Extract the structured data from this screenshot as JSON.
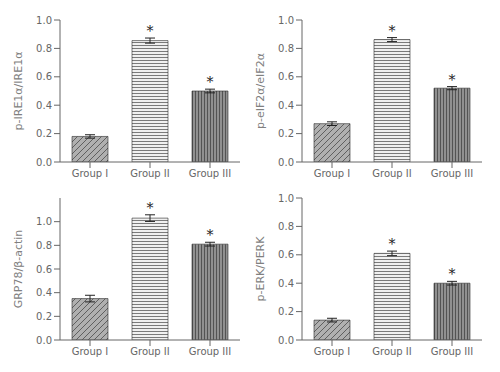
{
  "chart_data": [
    {
      "type": "bar",
      "ylabel": "p-IRE1α/IRE1α",
      "categories": [
        "Group I",
        "Group II",
        "Group III"
      ],
      "values": [
        0.18,
        0.855,
        0.5
      ],
      "errors": [
        0.012,
        0.018,
        0.013
      ],
      "colors": [
        "#b0b0b0",
        "#f0f0f0",
        "#909090"
      ],
      "ylim": [
        0.0,
        1.0
      ],
      "yticks": [
        {
          "value": 0,
          "label": "0.0"
        },
        0.2,
        0.4,
        0.6,
        0.8,
        {
          "value": 1,
          "label": "1.0"
        }
      ],
      "grid": false,
      "annotations": [
        {
          "category": "Group II",
          "text": "*"
        },
        {
          "category": "Group III",
          "text": "*"
        }
      ]
    },
    {
      "type": "bar",
      "ylabel": "p-eIF2α/eIF2α",
      "categories": [
        "Group I",
        "Group II",
        "Group III"
      ],
      "values": [
        0.27,
        0.862,
        0.52
      ],
      "errors": [
        0.013,
        0.014,
        0.011
      ],
      "colors": [
        "#b0b0b0",
        "#f0f0f0",
        "#909090"
      ],
      "ylim": [
        0.0,
        1.0
      ],
      "yticks": [
        {
          "value": 0,
          "label": "0.0"
        },
        0.2,
        0.4,
        0.6,
        0.8,
        {
          "value": 1,
          "label": "1.0"
        }
      ],
      "grid": false,
      "annotations": [
        {
          "category": "Group II",
          "text": "*"
        },
        {
          "category": "Group III",
          "text": "*"
        }
      ]
    },
    {
      "type": "bar",
      "ylabel": "GRP78/β-actin",
      "categories": [
        "Group I",
        "Group II",
        "Group III"
      ],
      "values": [
        0.35,
        1.03,
        0.81
      ],
      "errors": [
        0.028,
        0.028,
        0.016
      ],
      "colors": [
        "#b0b0b0",
        "#f0f0f0",
        "#909090"
      ],
      "ylim": [
        0.0,
        1.2
      ],
      "yticks": [
        {
          "value": 0,
          "label": "0.0"
        },
        0.2,
        0.4,
        0.6,
        0.8,
        {
          "value": 1,
          "label": "1.0"
        }
      ],
      "grid": false,
      "annotations": [
        {
          "category": "Group II",
          "text": "*"
        },
        {
          "category": "Group III",
          "text": "*"
        }
      ]
    },
    {
      "type": "bar",
      "ylabel": "p-ERK/PERK",
      "categories": [
        "Group I",
        "Group II",
        "Group III"
      ],
      "values": [
        0.14,
        0.61,
        0.4
      ],
      "errors": [
        0.013,
        0.016,
        0.013
      ],
      "colors": [
        "#b0b0b0",
        "#f0f0f0",
        "#909090"
      ],
      "ylim": [
        0.0,
        1.0
      ],
      "yticks": [
        {
          "value": 0,
          "label": "0.0"
        },
        0.2,
        0.4,
        0.6,
        0.8,
        {
          "value": 1,
          "label": "1.0"
        }
      ],
      "grid": false,
      "annotations": [
        {
          "category": "Group II",
          "text": "*"
        },
        {
          "category": "Group III",
          "text": "*"
        }
      ]
    }
  ]
}
